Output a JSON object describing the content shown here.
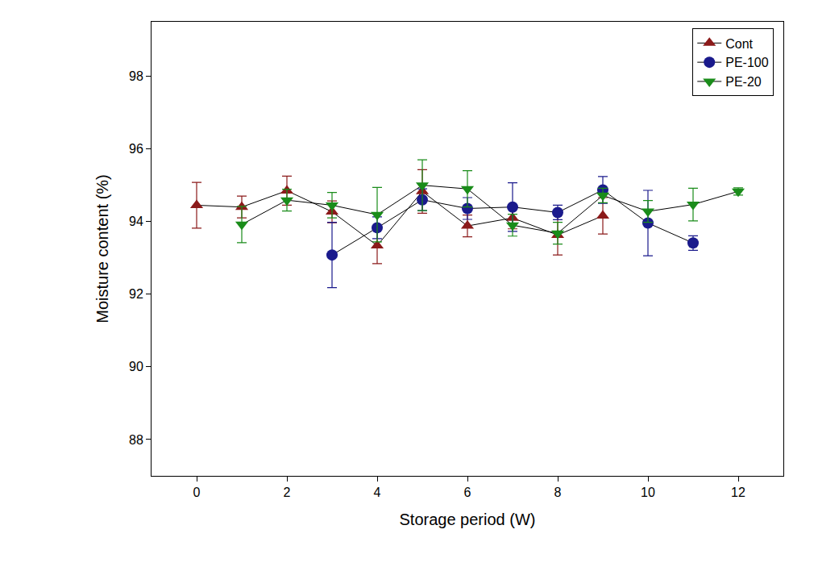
{
  "chart_data": {
    "type": "line",
    "x_label": "Storage period (W)",
    "y_label": "Moisture content (%)",
    "xlim": [
      -1,
      13
    ],
    "xticks": [
      0,
      2,
      4,
      6,
      8,
      10,
      12
    ],
    "ylim": [
      87,
      99.5
    ],
    "yticks": [
      88,
      90,
      92,
      94,
      96,
      98
    ],
    "grid": false,
    "legend": "upper right",
    "series": [
      {
        "name": "Cont",
        "color": "#8b1a1a",
        "marker": "triangle-up",
        "x": [
          0,
          1,
          2,
          3,
          4,
          5,
          6,
          7,
          8,
          9
        ],
        "values": [
          94.45,
          94.4,
          94.85,
          94.27,
          93.34,
          94.83,
          93.88,
          94.1,
          93.63,
          94.16
        ],
        "error": [
          0.63,
          0.3,
          0.4,
          0.3,
          0.5,
          0.6,
          0.3,
          0.3,
          0.55,
          0.5
        ]
      },
      {
        "name": "PE-100",
        "color": "#1a1a8c",
        "marker": "circle",
        "x": [
          3,
          4,
          5,
          6,
          7,
          8,
          9,
          10,
          11
        ],
        "values": [
          93.08,
          93.83,
          94.6,
          94.36,
          94.4,
          94.25,
          94.87,
          93.96,
          93.41
        ],
        "error": [
          0.9,
          0.3,
          0.3,
          0.3,
          0.67,
          0.2,
          0.37,
          0.9,
          0.2
        ]
      },
      {
        "name": "PE-20",
        "color": "#1a8c1a",
        "marker": "triangle-down",
        "x": [
          1,
          2,
          3,
          4,
          5,
          6,
          7,
          8,
          9,
          10,
          11,
          12
        ],
        "values": [
          93.92,
          94.59,
          94.45,
          94.19,
          95.0,
          94.9,
          93.9,
          93.68,
          94.72,
          94.28,
          94.47,
          94.83
        ],
        "error": [
          0.5,
          0.3,
          0.35,
          0.75,
          0.7,
          0.5,
          0.3,
          0.3,
          0.2,
          0.3,
          0.45,
          0.1
        ]
      }
    ]
  }
}
